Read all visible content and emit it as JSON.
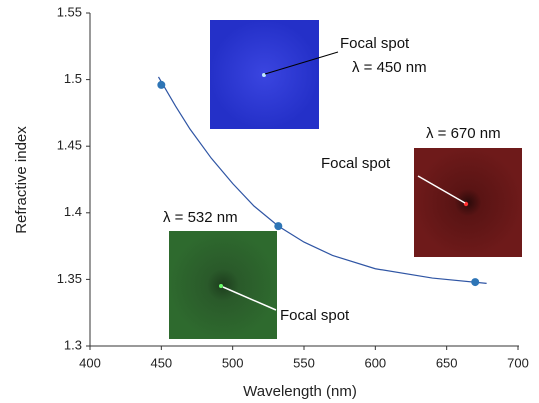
{
  "chart_data": {
    "type": "scatter",
    "x_label": "Wavelength (nm)",
    "y_label": "Refractive index",
    "xlim": [
      400,
      700
    ],
    "xticks": [
      400,
      450,
      500,
      550,
      600,
      650,
      700
    ],
    "ylim": [
      1.3,
      1.55
    ],
    "yticks": [
      1.3,
      1.35,
      1.4,
      1.45,
      1.5,
      1.55
    ],
    "points": {
      "x": [
        450,
        532,
        670
      ],
      "y": [
        1.496,
        1.39,
        1.348
      ],
      "color": "#2e75b6"
    },
    "fit": {
      "x": [
        448,
        460,
        470,
        485,
        500,
        515,
        532,
        550,
        570,
        600,
        640,
        678
      ],
      "y": [
        1.502,
        1.48,
        1.463,
        1.441,
        1.422,
        1.405,
        1.39,
        1.378,
        1.368,
        1.358,
        1.351,
        1.347
      ],
      "color": "#2f55a4"
    },
    "annotations": [
      "Focal spot",
      "λ = 450 nm",
      "λ = 670 nm",
      "Focal spot",
      "λ = 532 nm",
      "Focal spot"
    ]
  }
}
